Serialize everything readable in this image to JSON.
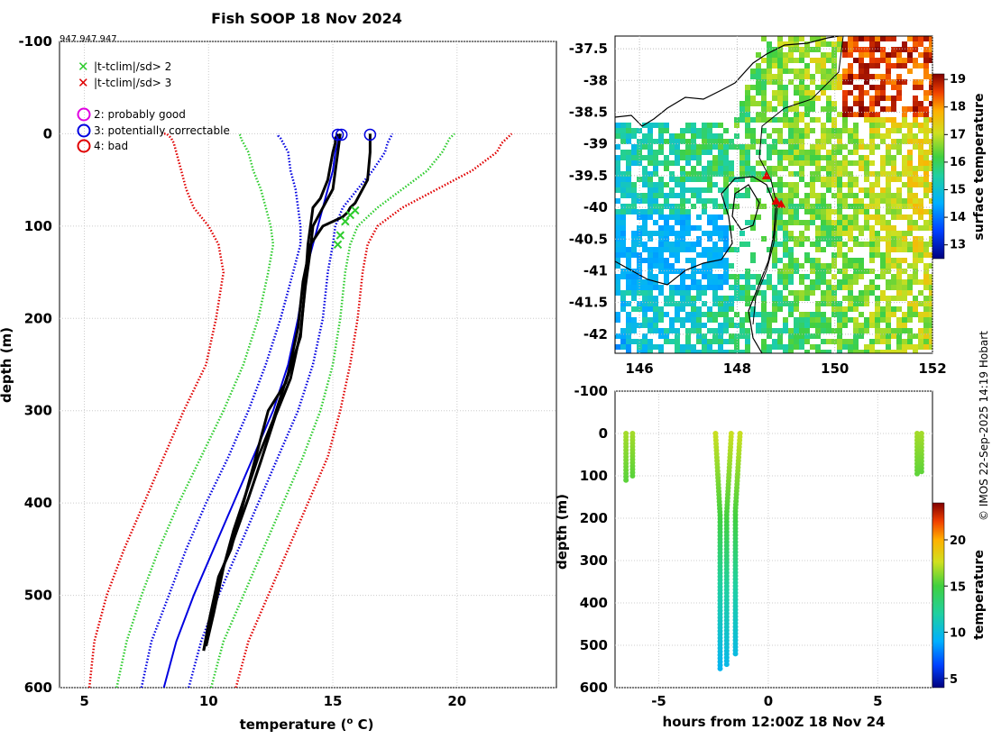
{
  "figure": {
    "title": "Fish SOOP 18 Nov 2024",
    "id_label": "947 947 947",
    "credit": "© IMOS 22-Sep-2025 14:19 Hobart"
  },
  "legend": {
    "items": [
      {
        "symbol": "x",
        "color": "#2ecc2e",
        "label": "|t-tclim|/sd> 2"
      },
      {
        "symbol": "x",
        "color": "#e00000",
        "label": "|t-tclim|/sd> 3"
      },
      {
        "symbol": "o",
        "color": "#e000e0",
        "label": "2: probably good"
      },
      {
        "symbol": "o",
        "color": "#0000e0",
        "label": "3: potentially correctable"
      },
      {
        "symbol": "o",
        "color": "#e00000",
        "label": "4: bad"
      }
    ]
  },
  "chart_data": [
    {
      "type": "line",
      "title": "Fish SOOP 18 Nov 2024",
      "xlabel": "temperature (",
      "xlabel_sup": "o",
      "xlabel_end": " C)",
      "ylabel": "depth (m)",
      "xlim": [
        4,
        24
      ],
      "ylim": [
        -100,
        600
      ],
      "xticks": [
        5,
        10,
        15,
        20
      ],
      "yticks": [
        -100,
        0,
        100,
        200,
        300,
        400,
        500,
        600
      ],
      "grid": true,
      "series": [
        {
          "name": "clim -3sd",
          "color": "#e00000",
          "style": "dotted",
          "x": [
            5.2,
            5.4,
            5.9,
            6.6,
            7.4,
            8.2,
            9.0,
            9.9,
            10.3,
            10.6,
            10.4,
            10.0,
            9.4,
            9.1,
            8.9,
            8.7,
            8.6,
            8.5,
            8.4,
            8.3,
            8.1
          ],
          "y": [
            600,
            550,
            500,
            450,
            400,
            350,
            300,
            250,
            200,
            150,
            120,
            100,
            80,
            60,
            40,
            20,
            10,
            5,
            2,
            0,
            0
          ]
        },
        {
          "name": "clim -2sd",
          "color": "#2ecc2e",
          "style": "dotted",
          "x": [
            6.3,
            6.7,
            7.3,
            8.0,
            8.8,
            9.7,
            10.6,
            11.4,
            12.0,
            12.4,
            12.6,
            12.5,
            12.3,
            12.1,
            11.8,
            11.6,
            11.4,
            11.3,
            11.3,
            11.2
          ],
          "y": [
            600,
            550,
            500,
            450,
            400,
            350,
            300,
            250,
            200,
            150,
            120,
            100,
            80,
            60,
            40,
            20,
            10,
            5,
            2,
            0
          ]
        },
        {
          "name": "clim -1sd",
          "color": "#0000e0",
          "style": "dotted",
          "x": [
            7.3,
            7.7,
            8.4,
            9.1,
            9.9,
            10.8,
            11.6,
            12.3,
            12.9,
            13.4,
            13.7,
            13.7,
            13.6,
            13.5,
            13.3,
            13.2,
            13.0,
            12.9,
            12.8,
            12.8
          ],
          "y": [
            600,
            550,
            500,
            450,
            400,
            350,
            300,
            250,
            200,
            150,
            120,
            100,
            80,
            60,
            40,
            20,
            10,
            5,
            2,
            0
          ]
        },
        {
          "name": "clim mean",
          "color": "#0000e0",
          "style": "solid",
          "x": [
            8.2,
            8.7,
            9.4,
            10.2,
            11.0,
            11.8,
            12.6,
            13.2,
            13.6,
            13.9,
            14.2,
            14.4,
            14.6,
            14.8,
            15.0,
            15.1,
            15.2,
            15.2,
            15.3
          ],
          "y": [
            600,
            550,
            500,
            450,
            400,
            350,
            300,
            250,
            200,
            150,
            120,
            100,
            80,
            60,
            40,
            20,
            10,
            5,
            0
          ]
        },
        {
          "name": "clim +1sd",
          "color": "#0000e0",
          "style": "dotted",
          "x": [
            9.2,
            9.7,
            10.4,
            11.2,
            12.0,
            12.8,
            13.6,
            14.2,
            14.6,
            14.8,
            15.0,
            15.1,
            15.4,
            16.0,
            16.6,
            17.1,
            17.2,
            17.3,
            17.4
          ],
          "y": [
            600,
            550,
            500,
            450,
            400,
            350,
            300,
            250,
            200,
            150,
            120,
            100,
            80,
            60,
            40,
            20,
            10,
            5,
            0
          ]
        },
        {
          "name": "clim +2sd",
          "color": "#2ecc2e",
          "style": "dotted",
          "x": [
            10.1,
            10.6,
            11.4,
            12.2,
            13.0,
            13.8,
            14.5,
            15.0,
            15.3,
            15.5,
            15.7,
            16.0,
            16.8,
            17.8,
            18.8,
            19.4,
            19.6,
            19.7,
            19.9
          ],
          "y": [
            600,
            550,
            500,
            450,
            400,
            350,
            300,
            250,
            200,
            150,
            120,
            100,
            80,
            60,
            40,
            20,
            10,
            5,
            0
          ]
        },
        {
          "name": "clim +3sd",
          "color": "#e00000",
          "style": "dotted",
          "x": [
            11.1,
            11.6,
            12.4,
            13.2,
            14.0,
            14.8,
            15.3,
            15.7,
            16.0,
            16.2,
            16.4,
            16.8,
            17.8,
            19.2,
            20.6,
            21.6,
            21.8,
            22.0,
            22.2
          ],
          "y": [
            600,
            550,
            500,
            450,
            400,
            350,
            300,
            250,
            200,
            150,
            120,
            100,
            80,
            60,
            40,
            20,
            10,
            5,
            0
          ]
        },
        {
          "name": "profile 1",
          "color": "#000000",
          "style": "solid",
          "x": [
            9.8,
            10.0,
            10.4,
            10.9,
            11.4,
            11.8,
            12.4,
            13.1,
            13.7,
            13.9,
            14.0,
            14.1,
            14.2,
            14.5,
            14.8,
            15.0,
            15.1,
            15.1,
            15.2
          ],
          "y": [
            560,
            530,
            480,
            450,
            400,
            360,
            300,
            270,
            220,
            160,
            120,
            100,
            80,
            70,
            50,
            20,
            10,
            5,
            0
          ]
        },
        {
          "name": "profile 2",
          "color": "#000000",
          "style": "solid",
          "x": [
            9.9,
            10.2,
            10.6,
            11.0,
            11.5,
            12.0,
            12.6,
            13.2,
            13.6,
            13.8,
            14.1,
            14.6,
            15.4,
            15.6,
            15.7,
            15.9,
            16.4,
            16.5,
            16.5
          ],
          "y": [
            555,
            520,
            470,
            430,
            390,
            350,
            310,
            260,
            210,
            160,
            120,
            100,
            90,
            85,
            80,
            75,
            50,
            20,
            0
          ]
        },
        {
          "name": "profile 3",
          "color": "#000000",
          "style": "solid",
          "x": [
            9.8,
            10.1,
            10.5,
            11.0,
            11.6,
            12.1,
            12.7,
            13.3,
            13.7,
            13.9,
            14.1,
            14.2,
            14.6,
            15.0,
            15.2,
            15.3
          ],
          "y": [
            560,
            525,
            475,
            440,
            395,
            355,
            305,
            265,
            215,
            165,
            125,
            100,
            80,
            60,
            20,
            0
          ]
        }
      ],
      "markers": [
        {
          "x": 15.2,
          "y": 1,
          "symbol": "o",
          "color": "#0000e0"
        },
        {
          "x": 15.35,
          "y": 1,
          "symbol": "o",
          "color": "#0000e0"
        },
        {
          "x": 16.5,
          "y": 1,
          "symbol": "o",
          "color": "#0000e0"
        },
        {
          "x": 15.5,
          "y": 95,
          "symbol": "x",
          "color": "#2ecc2e"
        },
        {
          "x": 15.7,
          "y": 88,
          "symbol": "x",
          "color": "#2ecc2e"
        },
        {
          "x": 15.9,
          "y": 83,
          "symbol": "x",
          "color": "#2ecc2e"
        },
        {
          "x": 15.3,
          "y": 110,
          "symbol": "x",
          "color": "#2ecc2e"
        },
        {
          "x": 15.2,
          "y": 120,
          "symbol": "x",
          "color": "#2ecc2e"
        }
      ]
    },
    {
      "type": "heatmap",
      "title": "",
      "xlabel": "",
      "ylabel": "",
      "xlim": [
        145.5,
        152
      ],
      "ylim": [
        -42.3,
        -37.3
      ],
      "xticks": [
        146,
        148,
        150,
        152
      ],
      "yticks": [
        -37.5,
        -38,
        -38.5,
        -39,
        -39.5,
        -40,
        -40.5,
        -41,
        -41.5,
        -42
      ],
      "colorbar_label": "surface temperature",
      "colorbar_range": [
        12.5,
        19.2
      ],
      "colorbar_ticks": [
        13,
        14,
        15,
        16,
        17,
        18,
        19
      ],
      "grid": true,
      "ship_track_points": [
        {
          "lon": 148.6,
          "lat": -39.5
        },
        {
          "lon": 148.8,
          "lat": -39.9
        },
        {
          "lon": 148.9,
          "lat": -39.95
        }
      ]
    },
    {
      "type": "scatter",
      "title": "",
      "xlabel": "hours from 12:00Z 18 Nov 24",
      "ylabel": "depth (m)",
      "xlim": [
        -7,
        7.5
      ],
      "ylim": [
        -100,
        600
      ],
      "xticks": [
        -5,
        0,
        5
      ],
      "yticks": [
        -100,
        0,
        100,
        200,
        300,
        400,
        500,
        600
      ],
      "colorbar_label": "temperature",
      "colorbar_range": [
        4,
        24
      ],
      "colorbar_ticks": [
        5,
        10,
        15,
        20
      ],
      "grid": true,
      "casts": [
        {
          "hours": -6.5,
          "max_depth": 110,
          "surface_temp": 16.8,
          "bottom_temp": 15.5
        },
        {
          "hours": -6.2,
          "max_depth": 100,
          "surface_temp": 16.8,
          "bottom_temp": 15.5
        },
        {
          "hours": -2.2,
          "max_depth": 555,
          "surface_temp": 17.5,
          "bottom_temp": 10.5
        },
        {
          "hours": -1.9,
          "max_depth": 545,
          "surface_temp": 17.5,
          "bottom_temp": 10.8
        },
        {
          "hours": -1.5,
          "max_depth": 520,
          "surface_temp": 17.5,
          "bottom_temp": 11.0
        },
        {
          "hours": 6.8,
          "max_depth": 95,
          "surface_temp": 16.8,
          "bottom_temp": 15.6
        },
        {
          "hours": 7.0,
          "max_depth": 90,
          "surface_temp": 16.8,
          "bottom_temp": 15.6
        }
      ]
    }
  ]
}
